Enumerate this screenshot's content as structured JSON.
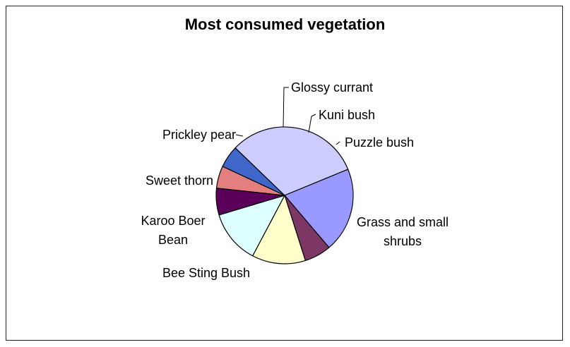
{
  "chart_data": {
    "type": "pie",
    "title": "Most consumed vegetation",
    "slices": [
      {
        "label": "Puzzle bush",
        "label_lines": [
          "Puzzle bush"
        ],
        "value": 5,
        "color": "#3f66c8"
      },
      {
        "label": "Grass and small shrubs",
        "label_lines": [
          "Grass and small",
          "shrubs"
        ],
        "value": 30,
        "color": "#ccccff"
      },
      {
        "label": "Bee Sting Bush",
        "label_lines": [
          "Bee Sting Bush"
        ],
        "value": 19,
        "color": "#9999ff"
      },
      {
        "label": "Karoo Boer Bean",
        "label_lines": [
          "Karoo Boer",
          "Bean"
        ],
        "value": 6,
        "color": "#7d3764"
      },
      {
        "label": "Sweet thorn",
        "label_lines": [
          "Sweet thorn"
        ],
        "value": 12,
        "color": "#ffffcc"
      },
      {
        "label": "Prickley pear",
        "label_lines": [
          "Prickley pear"
        ],
        "value": 12,
        "color": "#ddffff"
      },
      {
        "label": "Glossy currant",
        "label_lines": [
          "Glossy currant"
        ],
        "value": 6,
        "color": "#5a005a"
      },
      {
        "label": "Kuni bush",
        "label_lines": [
          "Kuni bush"
        ],
        "value": 5,
        "color": "#e37f7f"
      }
    ]
  }
}
